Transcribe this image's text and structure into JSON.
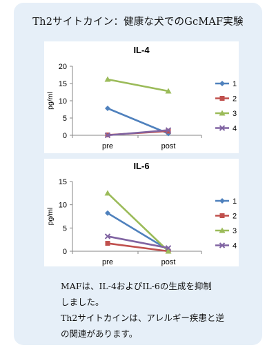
{
  "heading": "Th2サイトカイン：健康な犬でのGcMAF実験",
  "chart_data": [
    {
      "type": "line",
      "title": "IL-4",
      "ylabel": "pg/ml",
      "categories": [
        "pre",
        "post"
      ],
      "ylim": [
        0,
        20
      ],
      "yticks": [
        0,
        5,
        10,
        15,
        20
      ],
      "legend": "right",
      "series": [
        {
          "name": "1",
          "values": [
            7.8,
            0.5
          ],
          "color": "#4f81bd",
          "marker": "diamond"
        },
        {
          "name": "2",
          "values": [
            0.1,
            1.2
          ],
          "color": "#c0504d",
          "marker": "square"
        },
        {
          "name": "3",
          "values": [
            16.2,
            12.8
          ],
          "color": "#9bbb59",
          "marker": "triangle"
        },
        {
          "name": "4",
          "values": [
            0.0,
            1.5
          ],
          "color": "#8064a2",
          "marker": "x"
        }
      ]
    },
    {
      "type": "line",
      "title": "IL-6",
      "ylabel": "pg/ml",
      "categories": [
        "pre",
        "post"
      ],
      "ylim": [
        0,
        15
      ],
      "yticks": [
        0,
        5,
        10,
        15
      ],
      "legend": "right",
      "series": [
        {
          "name": "1",
          "values": [
            8.2,
            0.3
          ],
          "color": "#4f81bd",
          "marker": "diamond"
        },
        {
          "name": "2",
          "values": [
            1.7,
            0.0
          ],
          "color": "#c0504d",
          "marker": "square"
        },
        {
          "name": "3",
          "values": [
            12.5,
            0.0
          ],
          "color": "#9bbb59",
          "marker": "triangle"
        },
        {
          "name": "4",
          "values": [
            3.2,
            0.7
          ],
          "color": "#8064a2",
          "marker": "x"
        }
      ]
    }
  ],
  "notes": [
    "MAFは、IL-4およびIL-6の生成を抑制",
    "しました。",
    "Th2サイトカインは、アレルギー疾患と逆",
    "の関連があります。"
  ]
}
